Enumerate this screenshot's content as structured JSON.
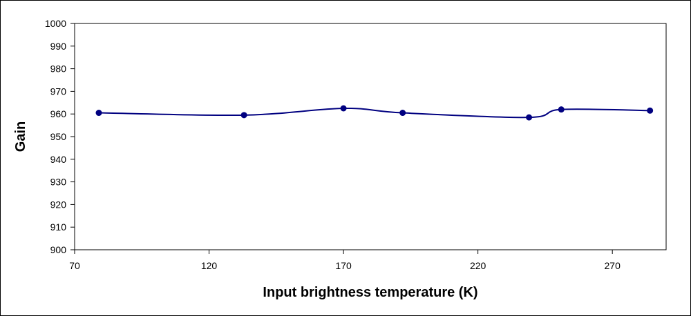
{
  "chart_data": {
    "type": "line",
    "title": "",
    "xlabel": "Input brightness temperature (K)",
    "ylabel": "Gain",
    "xlim": [
      70,
      290
    ],
    "ylim": [
      900,
      1000
    ],
    "xticks": [
      70,
      120,
      170,
      220,
      270
    ],
    "yticks": [
      900,
      910,
      920,
      930,
      940,
      950,
      960,
      970,
      980,
      990,
      1000
    ],
    "grid": false,
    "legend": "none",
    "smoothed": true,
    "series": [
      {
        "color": "#000080",
        "x": [
          79,
          133,
          170,
          192,
          239,
          251,
          284
        ],
        "y": [
          960.5,
          959.5,
          962.5,
          960.5,
          958.5,
          962,
          961.5
        ]
      }
    ]
  }
}
